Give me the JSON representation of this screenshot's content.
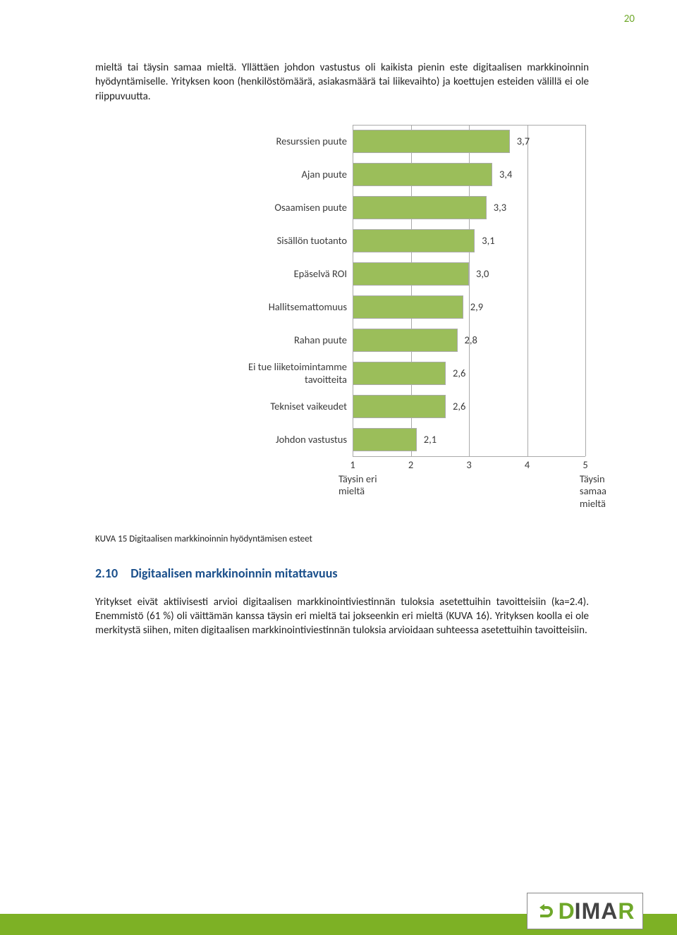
{
  "page_number": "20",
  "intro_paragraph": "mieltä tai täysin samaa mieltä. Yllättäen johdon vastustus oli kaikista pienin este digitaalisen markkinoinnin hyödyntämiselle. Yrityksen koon (henkilöstömäärä, asiakasmäärä tai liikevaihto) ja koettujen esteiden välillä ei ole riippuvuutta.",
  "chart": {
    "type": "bar",
    "bar_color": "#9bbe5a",
    "bar_border": "#aaaaaa",
    "grid_color": "#aaaaaa",
    "background_color": "#ffffff",
    "text_color": "#3a3a3a",
    "label_fontsize": 14.5,
    "xmin": 1,
    "xmax": 5,
    "xticks": [
      1,
      2,
      3,
      4,
      5
    ],
    "categories": [
      "Resurssien puute",
      "Ajan puute",
      "Osaamisen puute",
      "Sisällön tuotanto",
      "Epäselvä ROI",
      "Hallitsemattomuus",
      "Rahan puute",
      "Ei tue liiketoimintamme tavoitteita",
      "Tekniset vaikeudet",
      "Johdon vastustus"
    ],
    "values": [
      "3,7",
      "3,4",
      "3,3",
      "3,1",
      "3,0",
      "2,9",
      "2,8",
      "2,6",
      "2,6",
      "2,1"
    ],
    "values_numeric": [
      3.7,
      3.4,
      3.3,
      3.1,
      3.0,
      2.9,
      2.8,
      2.6,
      2.6,
      2.1
    ],
    "x_left_label": "Täysin eri\nmieltä",
    "x_right_label": "Täysin\nsamaa\nmieltä"
  },
  "caption": "KUVA 15 Digitaalisen markkinoinnin hyödyntämisen esteet",
  "heading_num": "2.10",
  "heading_text": "Digitaalisen markkinoinnin mitattavuus",
  "body2": "Yritykset eivät aktiivisesti arvioi digitaalisen markkinointiviestinnän tuloksia asetettuihin tavoitteisiin (ka=2.4). Enemmistö (61 %) oli väittämän kanssa täysin eri mieltä tai jokseenkin eri mieltä (KUVA 16). Yrityksen koolla ei ole merkitystä siihen, miten digitaalisen markkinointiviestinnän tuloksia arvioidaan suhteessa asetettuihin tavoitteisiin.",
  "logo": {
    "d1": "D",
    "mid": "IMA",
    "r": "R",
    "arrow_color": "#6fa82a"
  }
}
